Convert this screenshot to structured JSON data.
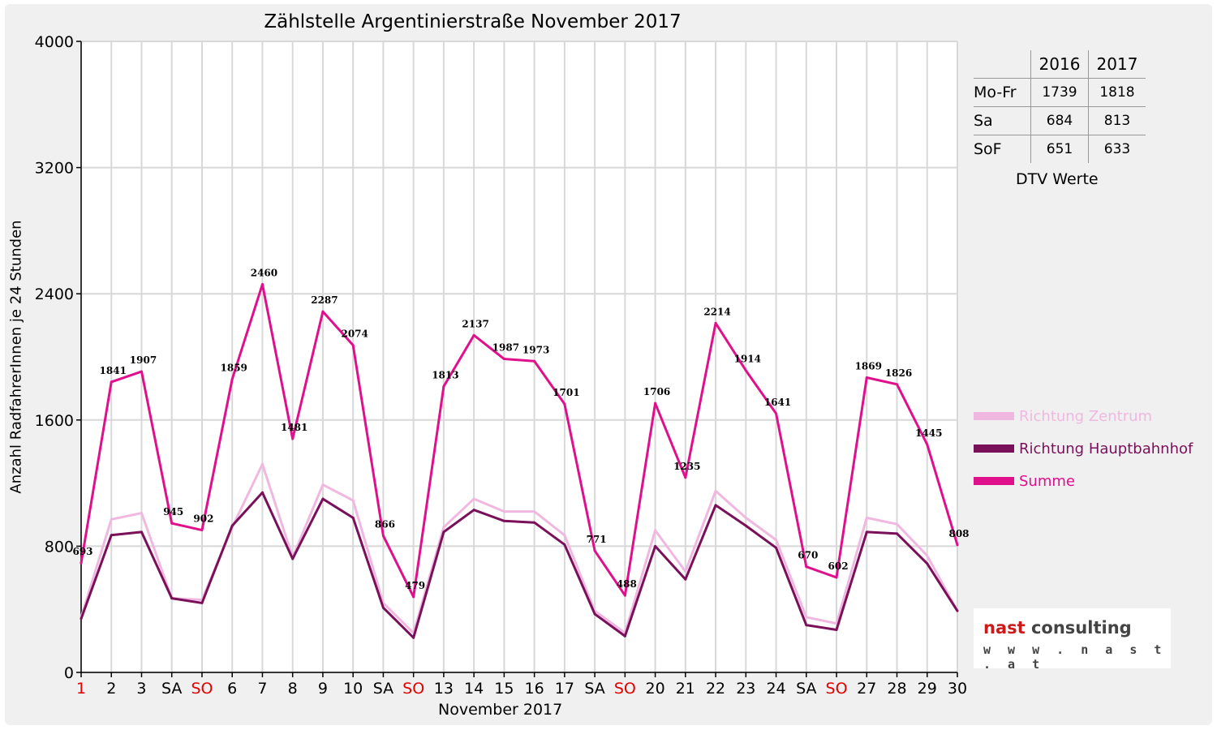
{
  "chart_data": {
    "type": "line",
    "title": "Zählstelle Argentinierstraße November 2017",
    "xlabel": "November 2017",
    "ylabel": "Anzahl RadfahrerInnen je 24 Stunden",
    "ylim": [
      0,
      4000
    ],
    "yticks": [
      0,
      800,
      1600,
      2400,
      3200,
      4000
    ],
    "grid": true,
    "categories": [
      "1",
      "2",
      "3",
      "SA",
      "SO",
      "6",
      "7",
      "8",
      "9",
      "10",
      "SA",
      "SO",
      "13",
      "14",
      "15",
      "16",
      "17",
      "SA",
      "SO",
      "20",
      "21",
      "22",
      "23",
      "24",
      "SA",
      "SO",
      "27",
      "28",
      "29",
      "30"
    ],
    "red_categories": [
      0,
      4,
      11,
      18,
      25
    ],
    "series": [
      {
        "name": "Richtung Zentrum",
        "color": "#f0b8e0",
        "values": [
          350,
          970,
          1010,
          470,
          460,
          920,
          1320,
          730,
          1190,
          1090,
          440,
          250,
          920,
          1100,
          1020,
          1020,
          870,
          390,
          250,
          900,
          640,
          1150,
          980,
          840,
          350,
          310,
          980,
          940,
          740,
          390
        ]
      },
      {
        "name": "Richtung Hauptbahnhof",
        "color": "#7a0f5a",
        "values": [
          340,
          870,
          890,
          470,
          440,
          930,
          1140,
          720,
          1100,
          980,
          410,
          220,
          890,
          1030,
          960,
          950,
          810,
          370,
          230,
          800,
          590,
          1060,
          930,
          790,
          300,
          270,
          890,
          880,
          690,
          390
        ]
      },
      {
        "name": "Summe",
        "color": "#e0108c",
        "values": [
          693,
          1841,
          1907,
          945,
          902,
          1859,
          2460,
          1481,
          2287,
          2074,
          866,
          479,
          1813,
          2137,
          1987,
          1973,
          1701,
          771,
          488,
          1706,
          1235,
          2214,
          1914,
          1641,
          670,
          602,
          1869,
          1826,
          1445,
          808
        ]
      }
    ],
    "data_labels_series": "Summe",
    "legend_position": "right"
  },
  "dtv_table": {
    "headers": [
      "2016",
      "2017"
    ],
    "rows": [
      {
        "label": "Mo-Fr",
        "v2016": "1739",
        "v2017": "1818"
      },
      {
        "label": "Sa",
        "v2016": "684",
        "v2017": "813"
      },
      {
        "label": "SoF",
        "v2016": "651",
        "v2017": "633"
      }
    ],
    "caption": "DTV Werte"
  },
  "logo": {
    "brand_red": "nast",
    "brand_grey": "consulting",
    "url": "w w w . n a s t . a t"
  }
}
